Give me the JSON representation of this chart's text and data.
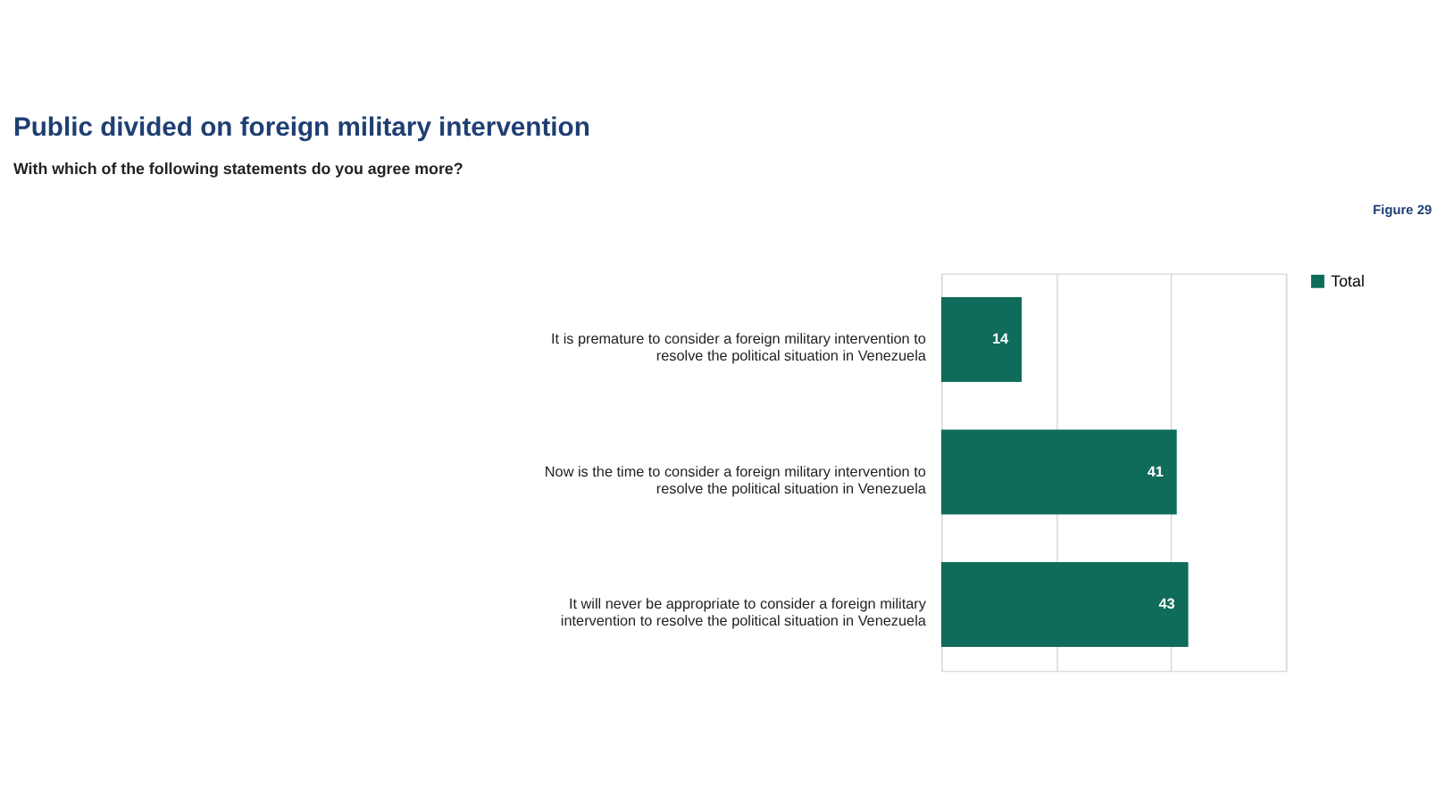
{
  "chart_data": {
    "type": "bar",
    "orientation": "horizontal",
    "title": "Public divided on foreign military intervention",
    "subtitle": "With which of the following statements do you agree more?",
    "annotations": [
      "Figure 29"
    ],
    "categories": [
      "It is premature to consider a foreign military intervention to resolve the political situation in Venezuela",
      "Now is the time to consider a foreign military intervention to resolve the political situation in Venezuela",
      "It will never be appropriate to consider a foreign military intervention to resolve the political situation in Venezuela"
    ],
    "series": [
      {
        "name": "Total",
        "color": "#0f6b5a",
        "values": [
          14,
          41,
          43
        ]
      }
    ],
    "xlim": [
      0,
      60
    ],
    "xticks": [
      {
        "value": 0,
        "label": null
      },
      {
        "value": 20,
        "label": null
      },
      {
        "value": 40,
        "label": null
      },
      {
        "value": 60,
        "label": null
      }
    ],
    "tick_labels": "y",
    "grid": "x",
    "legend": "right",
    "data_labels": true
  }
}
